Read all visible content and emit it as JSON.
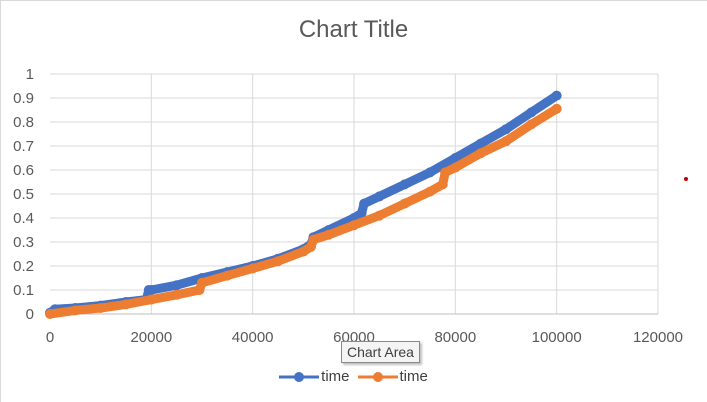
{
  "chart_data": {
    "type": "scatter",
    "title": "Chart Title",
    "xlabel": "",
    "ylabel": "",
    "xlim": [
      0,
      120000
    ],
    "ylim": [
      0,
      1
    ],
    "x_ticks": [
      0,
      20000,
      40000,
      60000,
      80000,
      100000,
      120000
    ],
    "y_ticks": [
      0,
      0.1,
      0.2,
      0.3,
      0.4,
      0.5,
      0.6,
      0.7,
      0.8,
      0.9,
      1
    ],
    "grid": true,
    "legend_position": "bottom",
    "series": [
      {
        "name": "time",
        "color": "#4472c4",
        "points": [
          [
            0,
            0.005
          ],
          [
            1000,
            0.02
          ],
          [
            5000,
            0.025
          ],
          [
            10000,
            0.035
          ],
          [
            15000,
            0.05
          ],
          [
            19000,
            0.06
          ],
          [
            19500,
            0.1
          ],
          [
            20000,
            0.1
          ],
          [
            25000,
            0.12
          ],
          [
            30000,
            0.15
          ],
          [
            35000,
            0.175
          ],
          [
            40000,
            0.2
          ],
          [
            45000,
            0.23
          ],
          [
            50000,
            0.27
          ],
          [
            51500,
            0.29
          ],
          [
            52000,
            0.32
          ],
          [
            55000,
            0.35
          ],
          [
            60000,
            0.4
          ],
          [
            61500,
            0.42
          ],
          [
            62000,
            0.46
          ],
          [
            65000,
            0.49
          ],
          [
            70000,
            0.54
          ],
          [
            75000,
            0.59
          ],
          [
            80000,
            0.65
          ],
          [
            85000,
            0.71
          ],
          [
            90000,
            0.77
          ],
          [
            95000,
            0.84
          ],
          [
            100000,
            0.91
          ]
        ]
      },
      {
        "name": "time",
        "color": "#ed7d31",
        "points": [
          [
            0,
            0.0
          ],
          [
            5000,
            0.015
          ],
          [
            10000,
            0.025
          ],
          [
            15000,
            0.04
          ],
          [
            20000,
            0.06
          ],
          [
            25000,
            0.08
          ],
          [
            29500,
            0.1
          ],
          [
            30000,
            0.13
          ],
          [
            35000,
            0.16
          ],
          [
            40000,
            0.19
          ],
          [
            45000,
            0.22
          ],
          [
            50000,
            0.26
          ],
          [
            51500,
            0.28
          ],
          [
            52000,
            0.31
          ],
          [
            55000,
            0.33
          ],
          [
            60000,
            0.37
          ],
          [
            65000,
            0.41
          ],
          [
            70000,
            0.46
          ],
          [
            75000,
            0.51
          ],
          [
            77500,
            0.54
          ],
          [
            78000,
            0.59
          ],
          [
            80000,
            0.61
          ],
          [
            85000,
            0.67
          ],
          [
            90000,
            0.72
          ],
          [
            95000,
            0.79
          ],
          [
            100000,
            0.855
          ]
        ]
      }
    ]
  },
  "tooltip_text": "Chart Area",
  "legend": [
    {
      "label": "time",
      "color": "#4472c4"
    },
    {
      "label": "time",
      "color": "#ed7d31"
    }
  ]
}
